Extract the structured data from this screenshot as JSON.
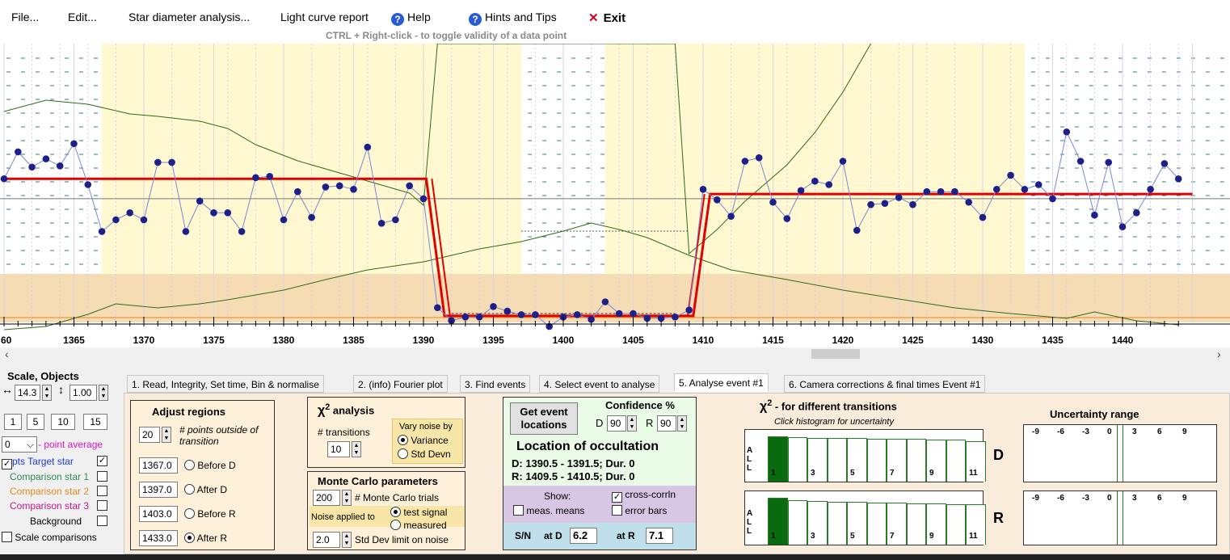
{
  "menu": {
    "file": "File...",
    "edit": "Edit...",
    "star": "Star diameter analysis...",
    "light": "Light curve report",
    "help": "Help",
    "hints": "Hints and Tips",
    "exit": "Exit",
    "hint_line": "CTRL + Right-click   -   to toggle validity of a data point"
  },
  "plot": {
    "x_ticks": [
      "60",
      "1365",
      "1370",
      "1375",
      "1380",
      "1385",
      "1390",
      "1395",
      "1400",
      "1405",
      "1410",
      "1415",
      "1420",
      "1425",
      "1430",
      "1435",
      "1440"
    ],
    "target_points": [
      [
        1360,
        1.15
      ],
      [
        1361,
        1.38
      ],
      [
        1362,
        1.25
      ],
      [
        1363,
        1.32
      ],
      [
        1364,
        1.26
      ],
      [
        1365,
        1.45
      ],
      [
        1366,
        1.1
      ],
      [
        1367,
        0.7
      ],
      [
        1368,
        0.8
      ],
      [
        1369,
        0.86
      ],
      [
        1370,
        0.8
      ],
      [
        1371,
        1.29
      ],
      [
        1372,
        1.29
      ],
      [
        1373,
        0.7
      ],
      [
        1374,
        0.96
      ],
      [
        1375,
        0.86
      ],
      [
        1376,
        0.86
      ],
      [
        1377,
        0.7
      ],
      [
        1378,
        1.16
      ],
      [
        1379,
        1.17
      ],
      [
        1380,
        0.8
      ],
      [
        1381,
        1.04
      ],
      [
        1382,
        0.82
      ],
      [
        1383,
        1.08
      ],
      [
        1384,
        1.09
      ],
      [
        1385,
        1.06
      ],
      [
        1386,
        1.42
      ],
      [
        1387,
        0.77
      ],
      [
        1388,
        0.8
      ],
      [
        1389,
        1.09
      ],
      [
        1390,
        0.98
      ],
      [
        1391,
        0.05
      ],
      [
        1392,
        -0.06
      ],
      [
        1393,
        -0.03
      ],
      [
        1394,
        -0.03
      ],
      [
        1395,
        0.06
      ],
      [
        1396,
        0.02
      ],
      [
        1397,
        -0.01
      ],
      [
        1398,
        -0.01
      ],
      [
        1399,
        -0.11
      ],
      [
        1400,
        -0.03
      ],
      [
        1401,
        -0.01
      ],
      [
        1402,
        -0.05
      ],
      [
        1403,
        0.1
      ],
      [
        1404,
        -0.0
      ],
      [
        1405,
        -0.0
      ],
      [
        1406,
        -0.04
      ],
      [
        1407,
        -0.04
      ],
      [
        1408,
        -0.03
      ],
      [
        1409,
        0.03
      ],
      [
        1410,
        1.06
      ],
      [
        1411,
        0.97
      ],
      [
        1412,
        0.83
      ],
      [
        1413,
        1.3
      ],
      [
        1414,
        1.33
      ],
      [
        1415,
        0.95
      ],
      [
        1416,
        0.81
      ],
      [
        1417,
        1.05
      ],
      [
        1418,
        1.13
      ],
      [
        1419,
        1.1
      ],
      [
        1420,
        1.3
      ],
      [
        1421,
        0.71
      ],
      [
        1422,
        0.93
      ],
      [
        1423,
        0.94
      ],
      [
        1424,
        0.99
      ],
      [
        1425,
        0.93
      ],
      [
        1426,
        1.04
      ],
      [
        1427,
        1.04
      ],
      [
        1428,
        1.04
      ],
      [
        1429,
        0.95
      ],
      [
        1430,
        0.82
      ],
      [
        1431,
        1.06
      ],
      [
        1432,
        1.18
      ],
      [
        1433,
        1.06
      ],
      [
        1434,
        1.1
      ],
      [
        1435,
        0.98
      ],
      [
        1436,
        1.55
      ],
      [
        1437,
        1.3
      ],
      [
        1438,
        0.84
      ],
      [
        1439,
        1.29
      ],
      [
        1440,
        0.74
      ],
      [
        1441,
        0.86
      ],
      [
        1442,
        1.06
      ],
      [
        1443,
        1.28
      ],
      [
        1444,
        1.15
      ]
    ]
  },
  "left": {
    "title": "Scale, Objects",
    "hscale": "14.3",
    "vscale": "1.00",
    "zoom_buttons": [
      "1",
      "5",
      "10",
      "15"
    ],
    "avg_value": "0",
    "avg_label": "- point average",
    "pts_label": "pts",
    "target_label": "Target star",
    "comp1": "Comparison star 1",
    "comp2": "Comparison star 2",
    "comp3": "Comparison star 3",
    "background": "Background",
    "scale_comp": "Scale comparisons",
    "colors": {
      "comp1": "#2e8b57",
      "comp2": "#e08a1e",
      "comp3": "#c0188a",
      "avg": "#d316c8",
      "target": "#1a3ae0"
    }
  },
  "tabs": [
    "1. Read, Integrity, Set time, Bin & normalise",
    "2. (info) Fourier plot",
    "3. Find events",
    "4. Select event to analyse",
    "5. Analyse event #1",
    "6. Camera corrections & final times Event #1"
  ],
  "adjust": {
    "title": "Adjust regions",
    "points_value": "20",
    "points_label": "# points outside of transition",
    "before_d": "1367.0",
    "before_d_label": "Before D",
    "after_d": "1397.0",
    "after_d_label": "After D",
    "before_r": "1403.0",
    "before_r_label": "Before R",
    "after_r": "1433.0",
    "after_r_label": "After R"
  },
  "chi": {
    "title": "analysis",
    "symbol": "χ",
    "transitions_label": "# transitions",
    "transitions_value": "10",
    "vary_label": "Vary noise by",
    "variance": "Variance",
    "stddev": "Std Devn"
  },
  "monte": {
    "title": "Monte Carlo parameters",
    "trials_value": "200",
    "trials_label": "# Monte Carlo trials",
    "noise_label": "Noise applied to",
    "test_signal": "test signal",
    "measured": "measured",
    "limit_value": "2.0",
    "limit_label": "Std Dev limit on noise"
  },
  "location": {
    "get_button": "Get event locations",
    "confidence": "Confidence %",
    "d_label": "D",
    "d_value": "90",
    "r_label": "R",
    "r_value": "90",
    "title": "Location of occultation",
    "d_line": "D: 1390.5 - 1391.5; Dur. 0",
    "r_line": "R: 1409.5 - 1410.5; Dur. 0",
    "show": "Show:",
    "cross": "cross-corrln",
    "meas": "meas. means",
    "err": "error bars",
    "sn_label": "S/N",
    "at_d": "at D",
    "sn_d": "6.2",
    "at_r": "at R",
    "sn_r": "7.1"
  },
  "histo": {
    "title": "- for different transitions",
    "symbol": "χ",
    "subtitle": "Click histogram for uncertainty",
    "all": "A\nL\nL",
    "labels": [
      "1",
      "3",
      "5",
      "7",
      "9",
      "11"
    ],
    "d_label": "D",
    "r_label": "R",
    "d_bars": [
      1,
      0.98,
      0.97,
      0.97,
      0.96,
      0.95,
      0.95,
      0.94,
      0.93,
      0.92,
      0.9
    ],
    "r_bars": [
      1,
      0.95,
      0.93,
      0.92,
      0.91,
      0.9,
      0.89,
      0.88,
      0.88,
      0.87,
      0.86
    ]
  },
  "unc": {
    "title": "Uncertainty range",
    "ticks": [
      "-9",
      "-6",
      "-3",
      "0",
      "3",
      "6",
      "9"
    ]
  }
}
